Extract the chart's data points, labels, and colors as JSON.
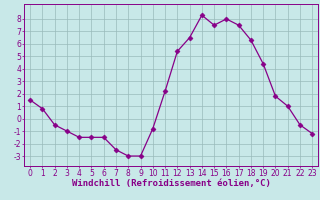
{
  "x": [
    0,
    1,
    2,
    3,
    4,
    5,
    6,
    7,
    8,
    9,
    10,
    11,
    12,
    13,
    14,
    15,
    16,
    17,
    18,
    19,
    20,
    21,
    22,
    23
  ],
  "y": [
    1.5,
    0.8,
    -0.5,
    -1.0,
    -1.5,
    -1.5,
    -1.5,
    -2.5,
    -3.0,
    -3.0,
    -0.8,
    2.2,
    5.4,
    6.5,
    8.3,
    7.5,
    8.0,
    7.5,
    6.3,
    4.4,
    1.8,
    1.0,
    -0.5,
    -1.2
  ],
  "xlim": [
    -0.5,
    23.5
  ],
  "ylim": [
    -3.8,
    9.2
  ],
  "yticks": [
    -3,
    -2,
    -1,
    0,
    1,
    2,
    3,
    4,
    5,
    6,
    7,
    8
  ],
  "xticks": [
    0,
    1,
    2,
    3,
    4,
    5,
    6,
    7,
    8,
    9,
    10,
    11,
    12,
    13,
    14,
    15,
    16,
    17,
    18,
    19,
    20,
    21,
    22,
    23
  ],
  "line_color": "#880088",
  "marker": "D",
  "marker_size": 2.5,
  "bg_color": "#c8e8e8",
  "grid_color": "#99bbbb",
  "xlabel": "Windchill (Refroidissement éolien,°C)",
  "xlabel_color": "#880088",
  "tick_color": "#880088",
  "spine_color": "#880088",
  "tick_fontsize": 5.5,
  "label_fontsize": 6.5,
  "linewidth": 0.9
}
